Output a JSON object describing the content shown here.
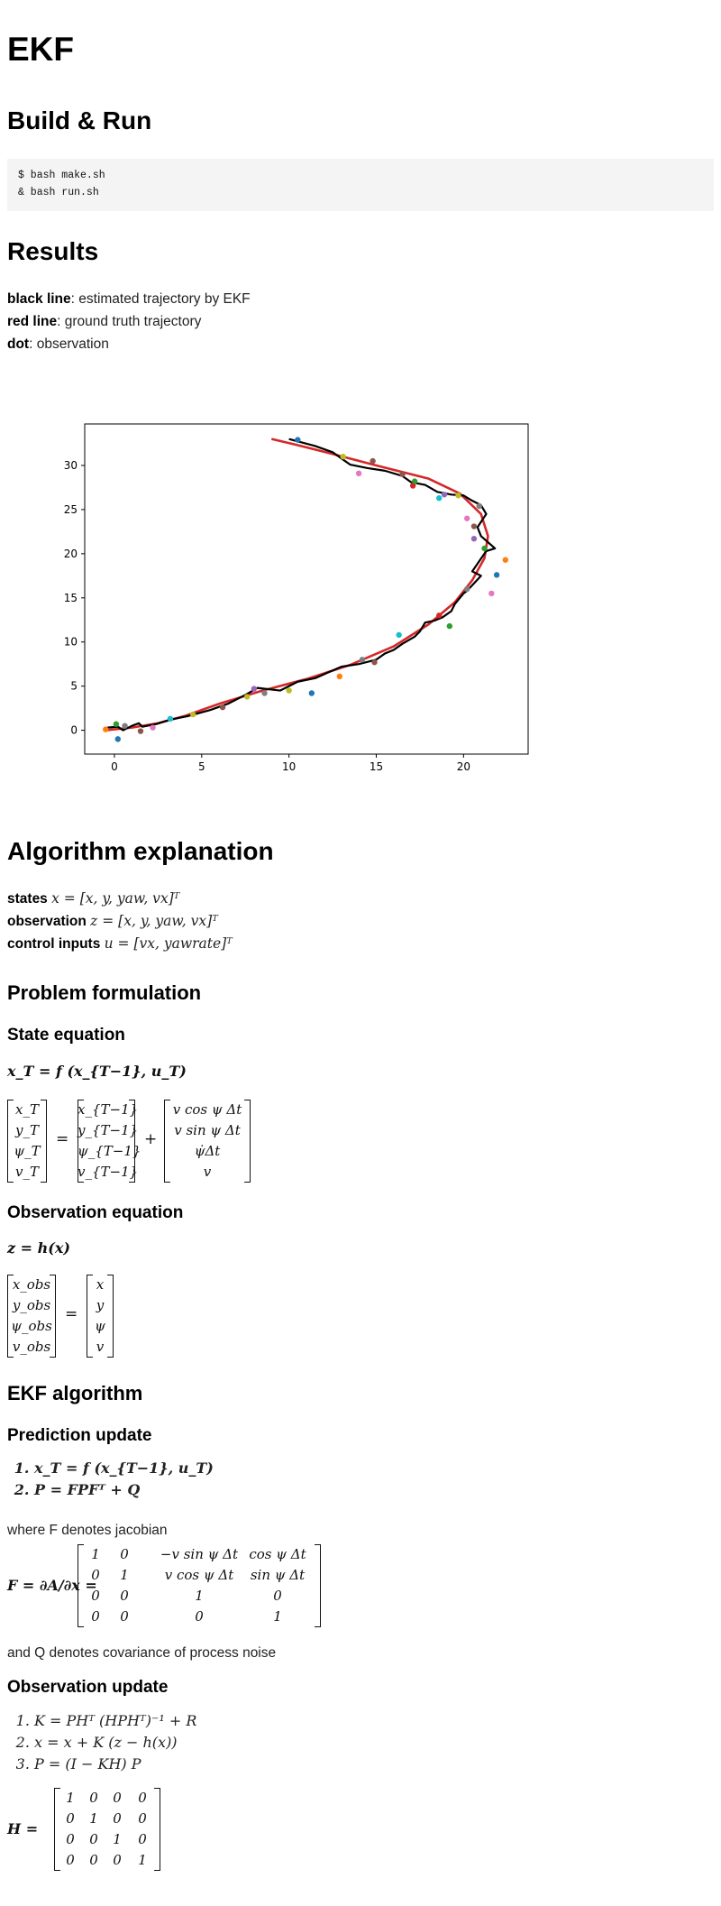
{
  "title": "EKF",
  "build": {
    "heading": "Build & Run",
    "code_lines": [
      "$ bash make.sh",
      "& bash run.sh"
    ]
  },
  "results": {
    "heading": "Results",
    "legend_lines": [
      {
        "bold": "black line",
        "rest": ": estimated trajectory by EKF"
      },
      {
        "bold": "red line",
        "rest": ": ground truth trajectory"
      },
      {
        "bold": "dot",
        "rest": ": observation"
      }
    ]
  },
  "chart_data": {
    "type": "line",
    "xlim": [
      -1.7,
      23.7
    ],
    "ylim": [
      -2.7,
      34.7
    ],
    "xticks": [
      0,
      5,
      10,
      15,
      20
    ],
    "yticks": [
      0,
      5,
      10,
      15,
      20,
      25,
      30
    ],
    "grid": false,
    "series": [
      {
        "color": "#d62728",
        "x": [
          -0.5,
          1.0,
          2.5,
          4.0,
          6.0,
          8.5,
          11.0,
          13.5,
          16.0,
          18.0,
          19.5,
          20.5,
          21.2,
          21.4,
          21.0,
          19.8,
          18.0,
          15.0,
          12.5,
          10.5,
          9.0
        ],
        "y": [
          0.0,
          0.3,
          0.8,
          1.6,
          3.0,
          4.5,
          5.8,
          7.4,
          9.5,
          12.0,
          14.5,
          17.0,
          19.5,
          22.0,
          24.5,
          26.8,
          28.5,
          30.0,
          31.3,
          32.3,
          33.0
        ]
      },
      {
        "color": "#000000",
        "x": [
          -0.4,
          0.2,
          0.5,
          1.0,
          1.4,
          1.6,
          2.4,
          3.2,
          4.2,
          5.5,
          6.5,
          7.5,
          8.2,
          9.5,
          10.5,
          11.5,
          12.3,
          13.0,
          14.0,
          15.0,
          15.5,
          16.0,
          16.5,
          17.2,
          17.5,
          17.8,
          18.3,
          18.8,
          19.3,
          19.5,
          20.0,
          20.2,
          21.0,
          20.5,
          21.3,
          21.8,
          21.0,
          20.8,
          21.3,
          21.0,
          20.5,
          20.0,
          19.3,
          18.5,
          17.8,
          17.0,
          16.5,
          15.5,
          14.5,
          13.5,
          12.5,
          11.5,
          10.0
        ],
        "y": [
          0.3,
          0.4,
          0.0,
          0.5,
          0.8,
          0.4,
          0.7,
          1.2,
          1.6,
          2.3,
          3.0,
          4.0,
          4.8,
          4.5,
          5.5,
          5.9,
          6.6,
          7.2,
          7.5,
          8.0,
          8.7,
          9.1,
          9.8,
          10.6,
          11.2,
          12.2,
          12.4,
          12.8,
          13.5,
          14.3,
          15.5,
          15.8,
          17.5,
          18.0,
          20.3,
          20.6,
          22.0,
          23.0,
          24.5,
          25.5,
          26.0,
          26.6,
          26.7,
          27.0,
          27.8,
          28.1,
          28.8,
          29.4,
          29.7,
          30.1,
          31.5,
          32.2,
          33.0
        ]
      }
    ],
    "observations": [
      {
        "x": -0.5,
        "y": 0.1,
        "c": "#ff7f0e"
      },
      {
        "x": 0.1,
        "y": 0.7,
        "c": "#2ca02c"
      },
      {
        "x": 0.2,
        "y": -1.0,
        "c": "#1f77b4"
      },
      {
        "x": 0.6,
        "y": 0.5,
        "c": "#7f7f7f"
      },
      {
        "x": 1.5,
        "y": -0.1,
        "c": "#8c564b"
      },
      {
        "x": 2.2,
        "y": 0.3,
        "c": "#e377c2"
      },
      {
        "x": 3.2,
        "y": 1.3,
        "c": "#17becf"
      },
      {
        "x": 4.5,
        "y": 1.8,
        "c": "#bcbd22"
      },
      {
        "x": 6.2,
        "y": 2.6,
        "c": "#8c564b"
      },
      {
        "x": 7.6,
        "y": 3.8,
        "c": "#bcbd22"
      },
      {
        "x": 8.0,
        "y": 4.7,
        "c": "#9467bd"
      },
      {
        "x": 8.6,
        "y": 4.2,
        "c": "#7f7f7f"
      },
      {
        "x": 10.0,
        "y": 4.5,
        "c": "#bcbd22"
      },
      {
        "x": 11.3,
        "y": 4.2,
        "c": "#1f77b4"
      },
      {
        "x": 12.9,
        "y": 6.1,
        "c": "#ff7f0e"
      },
      {
        "x": 14.2,
        "y": 8.0,
        "c": "#7f7f7f"
      },
      {
        "x": 14.9,
        "y": 7.7,
        "c": "#8c564b"
      },
      {
        "x": 16.3,
        "y": 10.8,
        "c": "#17becf"
      },
      {
        "x": 19.2,
        "y": 11.8,
        "c": "#2ca02c"
      },
      {
        "x": 18.6,
        "y": 13.0,
        "c": "#d62728"
      },
      {
        "x": 20.2,
        "y": 16.0,
        "c": "#7f7f7f"
      },
      {
        "x": 21.6,
        "y": 15.5,
        "c": "#e377c2"
      },
      {
        "x": 21.9,
        "y": 17.6,
        "c": "#1f77b4"
      },
      {
        "x": 22.4,
        "y": 19.3,
        "c": "#ff7f0e"
      },
      {
        "x": 21.2,
        "y": 20.6,
        "c": "#2ca02c"
      },
      {
        "x": 20.6,
        "y": 21.7,
        "c": "#9467bd"
      },
      {
        "x": 20.6,
        "y": 23.1,
        "c": "#8c564b"
      },
      {
        "x": 20.2,
        "y": 24.0,
        "c": "#e377c2"
      },
      {
        "x": 20.9,
        "y": 25.4,
        "c": "#7f7f7f"
      },
      {
        "x": 18.6,
        "y": 26.3,
        "c": "#17becf"
      },
      {
        "x": 19.7,
        "y": 26.6,
        "c": "#bcbd22"
      },
      {
        "x": 18.9,
        "y": 26.7,
        "c": "#9467bd"
      },
      {
        "x": 17.2,
        "y": 28.2,
        "c": "#2ca02c"
      },
      {
        "x": 16.5,
        "y": 29.0,
        "c": "#8c564b"
      },
      {
        "x": 17.1,
        "y": 27.7,
        "c": "#d62728"
      },
      {
        "x": 14.0,
        "y": 29.1,
        "c": "#e377c2"
      },
      {
        "x": 14.8,
        "y": 30.5,
        "c": "#8c564b"
      },
      {
        "x": 13.1,
        "y": 31.0,
        "c": "#bcbd22"
      },
      {
        "x": 10.5,
        "y": 32.9,
        "c": "#1f77b4"
      }
    ]
  },
  "algorithm": {
    "heading": "Algorithm explanation",
    "defs": [
      {
        "bold": "states",
        "math": "x = [x, y, yaw, vx]ᵀ"
      },
      {
        "bold": "observation",
        "math": "z = [x, y, yaw, vx]ᵀ"
      },
      {
        "bold": "control inputs",
        "math": "u = [vx, yawrate]ᵀ"
      }
    ]
  },
  "problem": {
    "heading": "Problem formulation",
    "state_heading": "State equation",
    "state_eq": "x_T = f (x_{T−1}, u_T)",
    "state_lhs": [
      "x_T",
      "y_T",
      "ψ_T",
      "v_T"
    ],
    "state_mid": [
      "x_{T−1}",
      "y_{T−1}",
      "ψ_{T−1}",
      "v_{T−1}"
    ],
    "state_rhs": [
      "v cos ψ Δt",
      "v sin ψ Δt",
      "ψ̇Δt",
      "v"
    ],
    "obs_heading": "Observation equation",
    "obs_eq": "z = h(x)",
    "obs_lhs": [
      "x_obs",
      "y_obs",
      "ψ_obs",
      "v_obs"
    ],
    "obs_rhs": [
      "x",
      "y",
      "ψ",
      "v"
    ]
  },
  "ekf": {
    "heading": "EKF algorithm",
    "pred_heading": "Prediction update",
    "pred_steps": [
      "x_T = f (x_{T−1}, u_T)",
      "P = FPFᵀ + Q"
    ],
    "jacobian_note": "where F denotes jacobian",
    "F_label": "F = ∂A/∂x =",
    "F_matrix": [
      [
        "1",
        "0",
        "−v sin ψ Δt",
        "cos ψ Δt"
      ],
      [
        "0",
        "1",
        "v cos ψ Δt",
        "sin ψ Δt"
      ],
      [
        "0",
        "0",
        "1",
        "0"
      ],
      [
        "0",
        "0",
        "0",
        "1"
      ]
    ],
    "Q_note": "and Q denotes covariance of process noise",
    "obs_heading": "Observation update",
    "obs_steps": [
      "K = PHᵀ (HPHᵀ)⁻¹ + R",
      "x = x + K (z − h(x))",
      "P = (I − KH) P"
    ],
    "H_label": "H =",
    "H_matrix": [
      [
        "1",
        "0",
        "0",
        "0"
      ],
      [
        "0",
        "1",
        "0",
        "0"
      ],
      [
        "0",
        "0",
        "1",
        "0"
      ],
      [
        "0",
        "0",
        "0",
        "1"
      ]
    ]
  }
}
